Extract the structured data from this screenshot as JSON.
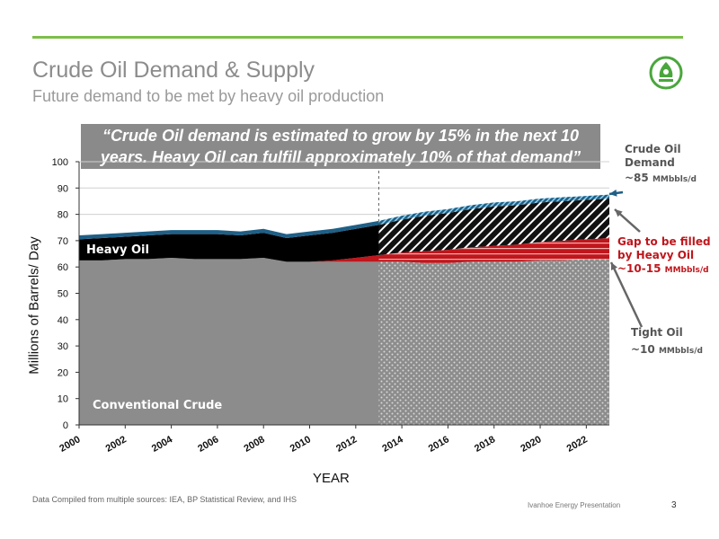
{
  "header": {
    "title": "Crude Oil Demand & Supply",
    "subtitle": "Future demand to be met by heavy oil production"
  },
  "callout": "“Crude Oil demand is estimated to grow by 15% in the next 10 years.  Heavy Oil can fulfill  approximately 10% of that demand”",
  "annotations": {
    "demand_line1": "Crude Oil",
    "demand_line2": "Demand",
    "demand_value": "~85",
    "demand_unit": "MMbbls/d",
    "gap_line1": "Gap to be filled",
    "gap_line2": "by Heavy Oil",
    "gap_value": "~10-15",
    "gap_unit": "MMbbls/d",
    "tight_line1": "Tight Oil",
    "tight_value": "~10",
    "tight_unit": "MMbbls/d"
  },
  "footer": {
    "source": "Data Compiled from multiple sources:  IEA,  BP Statistical Review, and IHS",
    "presentation": "Ivanhoe Energy Presentation",
    "page": "3"
  },
  "colors": {
    "accent": "#7cbf4a",
    "conventional": "#8c8c8c",
    "heavy": "#000000",
    "tight": "#c0161c",
    "demand_band": "#1f5f86"
  },
  "chart_data": {
    "type": "area",
    "xlabel": "YEAR",
    "ylabel": "Millions of Barrels/ Day",
    "ylim": [
      0,
      100
    ],
    "xlim": [
      2000,
      2023
    ],
    "grid": true,
    "projection_start": 2013,
    "x_ticks": [
      "2000",
      "2002",
      "2004",
      "2006",
      "2008",
      "2010",
      "2012",
      "2014",
      "2016",
      "2018",
      "2020",
      "2022"
    ],
    "y_ticks": [
      "0",
      "10",
      "20",
      "30",
      "40",
      "50",
      "60",
      "70",
      "80",
      "90",
      "100"
    ],
    "x": [
      2000,
      2001,
      2002,
      2003,
      2004,
      2005,
      2006,
      2007,
      2008,
      2009,
      2010,
      2011,
      2012,
      2013,
      2014,
      2015,
      2016,
      2017,
      2018,
      2019,
      2020,
      2021,
      2022,
      2023
    ],
    "series": [
      {
        "name": "Conventional Crude",
        "values": [
          62.5,
          62.5,
          63,
          63,
          63.5,
          63,
          63,
          63,
          63.5,
          62,
          62,
          62,
          62,
          62,
          62,
          61.5,
          61.5,
          62,
          62,
          62,
          62.5,
          62.5,
          63,
          63
        ]
      },
      {
        "name": "Tight Oil",
        "values": [
          0,
          0,
          0,
          0,
          0,
          0,
          0,
          0,
          0,
          0,
          0,
          0.5,
          1.5,
          2.5,
          3.5,
          4.5,
          5,
          5.5,
          6,
          6.5,
          7,
          7.5,
          7.5,
          8
        ]
      },
      {
        "name": "Heavy Oil",
        "values": [
          8,
          8.5,
          8.5,
          9,
          9,
          9.5,
          9.5,
          9,
          9.5,
          9,
          10,
          10.5,
          11,
          11.5,
          12.5,
          13.5,
          14,
          14.5,
          15,
          15,
          15,
          15,
          15,
          15
        ]
      },
      {
        "name": "Demand Band",
        "values": [
          1.5,
          1.5,
          1.5,
          1.5,
          1.5,
          1.5,
          1.5,
          1.5,
          1.5,
          1.5,
          1.5,
          1.5,
          1.5,
          1.5,
          1.5,
          1.5,
          1.5,
          1.5,
          1.5,
          1.5,
          1.5,
          1.5,
          1.5,
          1.5
        ]
      }
    ],
    "labels": {
      "heavy_oil": "Heavy Oil",
      "conventional": "Conventional Crude"
    }
  }
}
